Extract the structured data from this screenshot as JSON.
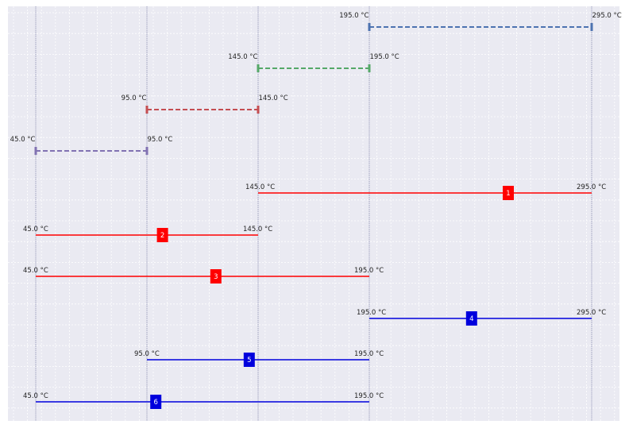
{
  "unit": "°C",
  "colors": {
    "plot_bg": "#eaeaf2",
    "grid": "#ffffff",
    "vline": "#6b6f9c",
    "hot": "#ff0000",
    "cold": "#0000dd",
    "marker_text": "#ffffff",
    "label_text": "#222222"
  },
  "chart_data": {
    "type": "interval-diagram",
    "x_levels": [
      45.0,
      95.0,
      145.0,
      195.0,
      295.0
    ],
    "temperature_intervals": [
      {
        "from": 195.0,
        "to": 295.0,
        "from_label": "195.0 °C",
        "to_label": "295.0 °C",
        "color": "#4c72b0"
      },
      {
        "from": 145.0,
        "to": 195.0,
        "from_label": "145.0 °C",
        "to_label": "195.0 °C",
        "color": "#55a868"
      },
      {
        "from": 95.0,
        "to": 145.0,
        "from_label": "95.0 °C",
        "to_label": "145.0 °C",
        "color": "#c44e52"
      },
      {
        "from": 45.0,
        "to": 95.0,
        "from_label": "45.0 °C",
        "to_label": "95.0 °C",
        "color": "#8172b2"
      }
    ],
    "streams": [
      {
        "id": "1",
        "type": "hot",
        "from": 145.0,
        "to": 295.0,
        "from_label": "145.0 °C",
        "to_label": "295.0 °C",
        "marker_at": 0.75
      },
      {
        "id": "2",
        "type": "hot",
        "from": 45.0,
        "to": 145.0,
        "from_label": "45.0 °C",
        "to_label": "145.0 °C",
        "marker_at": 0.57
      },
      {
        "id": "3",
        "type": "hot",
        "from": 45.0,
        "to": 195.0,
        "from_label": "45.0 °C",
        "to_label": "195.0 °C",
        "marker_at": 0.54
      },
      {
        "id": "4",
        "type": "cold",
        "from": 195.0,
        "to": 295.0,
        "from_label": "195.0 °C",
        "to_label": "295.0 °C",
        "marker_at": 0.46
      },
      {
        "id": "5",
        "type": "cold",
        "from": 95.0,
        "to": 195.0,
        "from_label": "95.0 °C",
        "to_label": "195.0 °C",
        "marker_at": 0.46
      },
      {
        "id": "6",
        "type": "cold",
        "from": 45.0,
        "to": 195.0,
        "from_label": "45.0 °C",
        "to_label": "195.0 °C",
        "marker_at": 0.36
      }
    ]
  }
}
